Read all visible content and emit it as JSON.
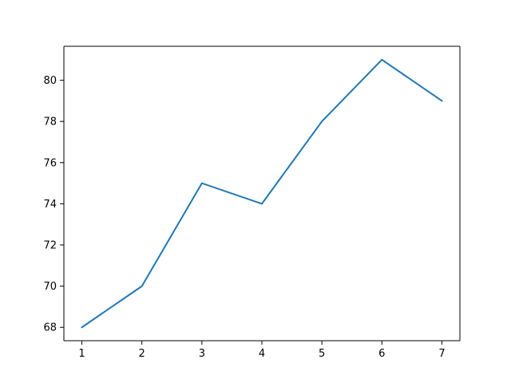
{
  "chart_data": {
    "type": "line",
    "title": "",
    "xlabel": "",
    "ylabel": "",
    "x": [
      1,
      2,
      3,
      4,
      5,
      6,
      7
    ],
    "series": [
      {
        "values": [
          68,
          70,
          75,
          74,
          78,
          81,
          79
        ],
        "color": "#1f77b4"
      }
    ],
    "xlim": [
      0.7,
      7.3
    ],
    "ylim": [
      67.35,
      81.65
    ],
    "xticks": [
      1,
      2,
      3,
      4,
      5,
      6,
      7
    ],
    "xtick_labels": [
      "1",
      "2",
      "3",
      "4",
      "5",
      "6",
      "7"
    ],
    "yticks": [
      68,
      70,
      72,
      74,
      76,
      78,
      80
    ],
    "ytick_labels": [
      "68",
      "70",
      "72",
      "74",
      "76",
      "78",
      "80"
    ],
    "grid": false,
    "legend": "none"
  }
}
